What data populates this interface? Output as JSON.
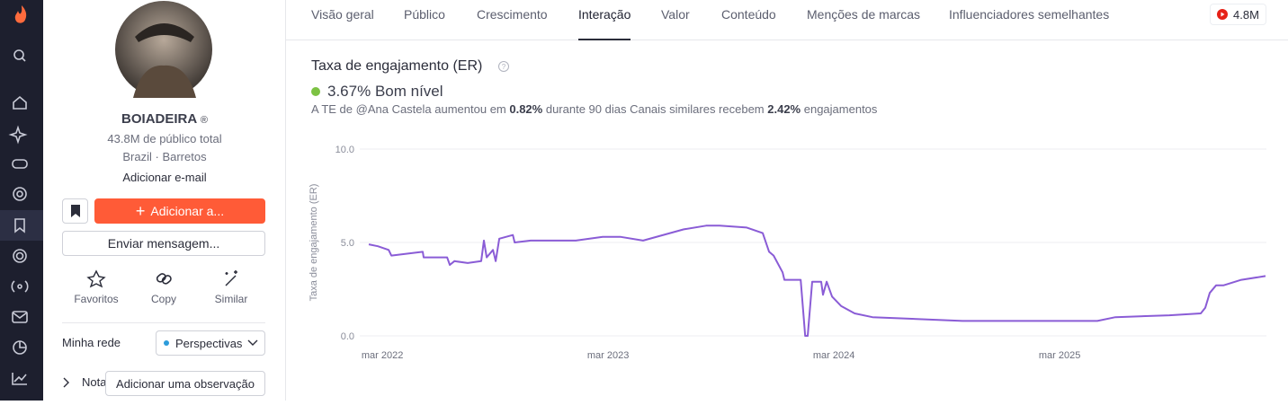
{
  "tabs": [
    "Visão geral",
    "Público",
    "Crescimento",
    "Interação",
    "Valor",
    "Conteúdo",
    "Menções de marcas",
    "Influenciadores semelhantes"
  ],
  "active_tab": 3,
  "channel_badge": "4.8M",
  "profile": {
    "name": "BOIADEIRA",
    "badge": "®",
    "audience": "43.8M de público total",
    "location": "Brazil · Barretos",
    "email": "Adicionar e-mail",
    "add_button": "Adicionar a...",
    "message_button": "Enviar mensagem...",
    "actions": [
      "Favoritos",
      "Copy",
      "Similar"
    ],
    "network_label": "Minha rede",
    "network_select": "Perspectivas",
    "notes_label": "Nota",
    "notes_button": "Adicionar uma observação"
  },
  "section": {
    "er_value": "3.67%",
    "er_level": "Bom nível",
    "summary": [
      "A TE de @Ana Castela aumentou em ",
      "0.82%",
      " durante 90 dias Canais similares recebem ",
      "2.42%",
      " engajamentos"
    ]
  },
  "chart_data": {
    "type": "line",
    "title": "Taxa de engajamento (ER)",
    "y_label": "Taxa de engajamento (ER)",
    "color": "#8a5cd6",
    "x": [
      2022.107,
      2022.147,
      2022.195,
      2022.207,
      2022.346,
      2022.35,
      2022.454,
      2022.466,
      2022.486,
      2022.545,
      2022.605,
      2022.617,
      2022.629,
      2022.657,
      2022.669,
      2022.685,
      2022.745,
      2022.753,
      2022.824,
      2023.024,
      2023.143,
      2023.223,
      2023.322,
      2023.502,
      2023.601,
      2023.661,
      2023.781,
      2023.852,
      2023.88,
      2023.9,
      2023.94,
      2023.948,
      2024.02,
      2024.04,
      2024.051,
      2024.071,
      2024.111,
      2024.119,
      2024.135,
      2024.159,
      2024.199,
      2024.259,
      2024.338,
      2024.737,
      2025.334,
      2025.414,
      2025.653,
      2025.792,
      2025.812,
      2025.832,
      2025.86,
      2025.892,
      2025.972,
      2026.079
    ],
    "values": [
      4.9,
      4.8,
      4.6,
      4.3,
      4.5,
      4.2,
      4.2,
      3.8,
      4.0,
      3.9,
      4.0,
      5.1,
      4.2,
      4.6,
      4.0,
      5.2,
      5.4,
      5.0,
      5.1,
      5.1,
      5.3,
      5.3,
      5.1,
      5.7,
      5.9,
      5.9,
      5.8,
      5.5,
      4.5,
      4.3,
      3.4,
      3.0,
      3.0,
      0.0,
      0.0,
      2.9,
      2.9,
      2.2,
      2.9,
      2.1,
      1.6,
      1.2,
      1.0,
      0.8,
      0.8,
      1.0,
      1.1,
      1.2,
      1.5,
      2.3,
      2.7,
      2.7,
      3.0,
      3.2
    ],
    "xlim": [
      2022.067,
      2026.083
    ],
    "xticks": [
      {
        "value": 2022.167,
        "label": "mar 2022"
      },
      {
        "value": 2023.167,
        "label": "mar 2023"
      },
      {
        "value": 2024.167,
        "label": "mar 2024"
      },
      {
        "value": 2025.167,
        "label": "mar 2025"
      }
    ],
    "ylim": [
      0,
      10
    ],
    "yticks": [
      {
        "value": 0,
        "label": "0.0"
      },
      {
        "value": 5,
        "label": "5.0"
      },
      {
        "value": 10,
        "label": "10.0"
      }
    ],
    "grid": true
  }
}
